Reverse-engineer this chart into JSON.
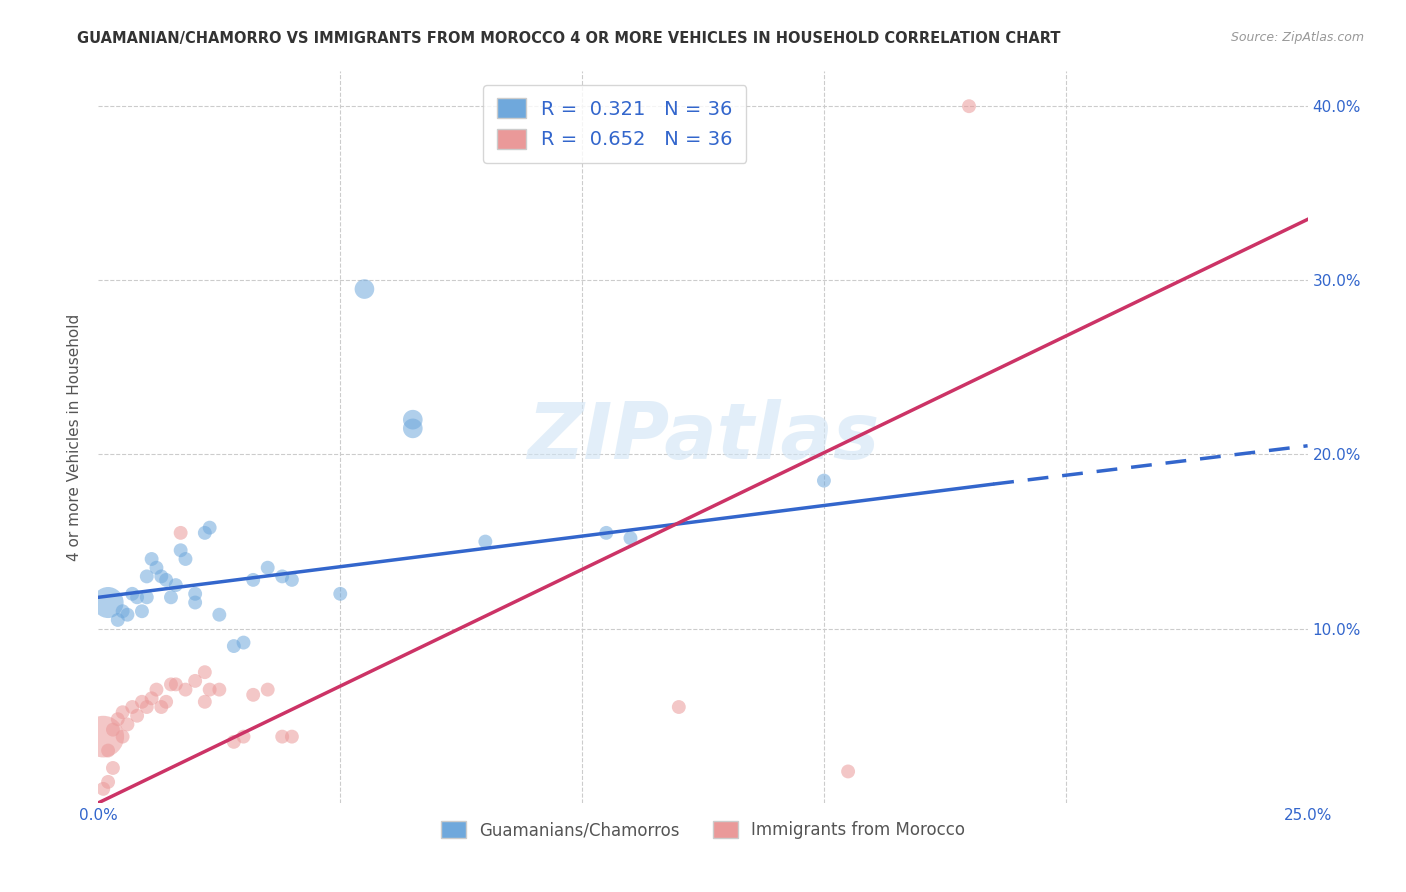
{
  "title": "GUAMANIAN/CHAMORRO VS IMMIGRANTS FROM MOROCCO 4 OR MORE VEHICLES IN HOUSEHOLD CORRELATION CHART",
  "source": "Source: ZipAtlas.com",
  "ylabel": "4 or more Vehicles in Household",
  "xmin": 0.0,
  "xmax": 0.25,
  "ymin": 0.0,
  "ymax": 0.42,
  "xticks": [
    0.0,
    0.05,
    0.1,
    0.15,
    0.2,
    0.25
  ],
  "xticklabels": [
    "0.0%",
    "",
    "",
    "",
    "",
    "25.0%"
  ],
  "yticks": [
    0.0,
    0.1,
    0.2,
    0.3,
    0.4
  ],
  "yticklabels": [
    "",
    "10.0%",
    "20.0%",
    "30.0%",
    "40.0%"
  ],
  "r_blue": "0.321",
  "n_blue": "36",
  "r_pink": "0.652",
  "n_pink": "36",
  "blue_color": "#6fa8dc",
  "pink_color": "#ea9999",
  "blue_line_color": "#3366cc",
  "pink_line_color": "#cc3366",
  "watermark": "ZIPatlas",
  "legend_label_blue": "Guamanians/Chamorros",
  "legend_label_pink": "Immigrants from Morocco",
  "blue_line_x0": 0.0,
  "blue_line_y0": 0.118,
  "blue_line_x1": 0.185,
  "blue_line_y1": 0.183,
  "blue_line_dash_x0": 0.185,
  "blue_line_dash_y0": 0.183,
  "blue_line_dash_x1": 0.25,
  "blue_line_dash_y1": 0.205,
  "pink_line_x0": 0.0,
  "pink_line_y0": 0.0,
  "pink_line_x1": 0.25,
  "pink_line_y1": 0.335,
  "blue_points": [
    [
      0.002,
      0.115
    ],
    [
      0.004,
      0.105
    ],
    [
      0.005,
      0.11
    ],
    [
      0.006,
      0.108
    ],
    [
      0.007,
      0.12
    ],
    [
      0.008,
      0.118
    ],
    [
      0.009,
      0.11
    ],
    [
      0.01,
      0.13
    ],
    [
      0.01,
      0.118
    ],
    [
      0.011,
      0.14
    ],
    [
      0.012,
      0.135
    ],
    [
      0.013,
      0.13
    ],
    [
      0.014,
      0.128
    ],
    [
      0.015,
      0.118
    ],
    [
      0.016,
      0.125
    ],
    [
      0.017,
      0.145
    ],
    [
      0.018,
      0.14
    ],
    [
      0.02,
      0.12
    ],
    [
      0.02,
      0.115
    ],
    [
      0.022,
      0.155
    ],
    [
      0.023,
      0.158
    ],
    [
      0.025,
      0.108
    ],
    [
      0.028,
      0.09
    ],
    [
      0.03,
      0.092
    ],
    [
      0.032,
      0.128
    ],
    [
      0.035,
      0.135
    ],
    [
      0.038,
      0.13
    ],
    [
      0.04,
      0.128
    ],
    [
      0.05,
      0.12
    ],
    [
      0.055,
      0.295
    ],
    [
      0.065,
      0.22
    ],
    [
      0.065,
      0.215
    ],
    [
      0.08,
      0.15
    ],
    [
      0.105,
      0.155
    ],
    [
      0.11,
      0.152
    ],
    [
      0.15,
      0.185
    ]
  ],
  "blue_sizes": [
    500,
    100,
    100,
    100,
    100,
    100,
    100,
    100,
    100,
    100,
    100,
    100,
    100,
    100,
    100,
    100,
    100,
    100,
    100,
    100,
    100,
    100,
    100,
    100,
    100,
    100,
    100,
    100,
    100,
    200,
    200,
    200,
    100,
    100,
    100,
    100
  ],
  "pink_points": [
    [
      0.001,
      0.038
    ],
    [
      0.002,
      0.03
    ],
    [
      0.003,
      0.042
    ],
    [
      0.004,
      0.048
    ],
    [
      0.005,
      0.038
    ],
    [
      0.005,
      0.052
    ],
    [
      0.006,
      0.045
    ],
    [
      0.007,
      0.055
    ],
    [
      0.008,
      0.05
    ],
    [
      0.009,
      0.058
    ],
    [
      0.01,
      0.055
    ],
    [
      0.011,
      0.06
    ],
    [
      0.012,
      0.065
    ],
    [
      0.013,
      0.055
    ],
    [
      0.014,
      0.058
    ],
    [
      0.015,
      0.068
    ],
    [
      0.016,
      0.068
    ],
    [
      0.017,
      0.155
    ],
    [
      0.018,
      0.065
    ],
    [
      0.02,
      0.07
    ],
    [
      0.022,
      0.058
    ],
    [
      0.022,
      0.075
    ],
    [
      0.023,
      0.065
    ],
    [
      0.025,
      0.065
    ],
    [
      0.028,
      0.035
    ],
    [
      0.03,
      0.038
    ],
    [
      0.032,
      0.062
    ],
    [
      0.035,
      0.065
    ],
    [
      0.038,
      0.038
    ],
    [
      0.04,
      0.038
    ],
    [
      0.12,
      0.055
    ],
    [
      0.155,
      0.018
    ],
    [
      0.18,
      0.4
    ],
    [
      0.001,
      0.008
    ],
    [
      0.002,
      0.012
    ],
    [
      0.003,
      0.02
    ]
  ],
  "pink_sizes": [
    900,
    100,
    100,
    100,
    100,
    100,
    100,
    100,
    100,
    100,
    100,
    100,
    100,
    100,
    100,
    100,
    100,
    100,
    100,
    100,
    100,
    100,
    100,
    100,
    100,
    100,
    100,
    100,
    100,
    100,
    100,
    100,
    100,
    100,
    100,
    100
  ]
}
